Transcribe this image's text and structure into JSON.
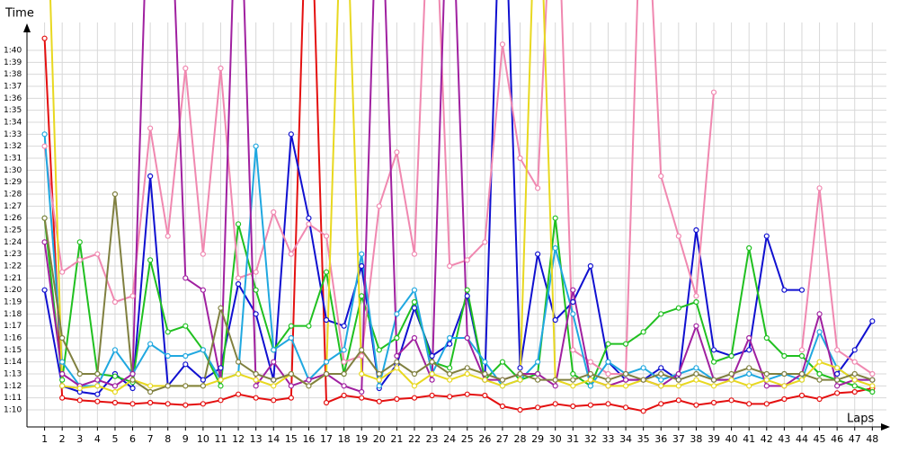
{
  "chart_data": {
    "type": "line",
    "y_label": "Time",
    "x_label": "Laps",
    "x": [
      1,
      2,
      3,
      4,
      5,
      6,
      7,
      8,
      9,
      10,
      11,
      12,
      13,
      14,
      15,
      16,
      17,
      18,
      19,
      20,
      21,
      22,
      23,
      24,
      25,
      26,
      27,
      28,
      29,
      30,
      31,
      32,
      33,
      34,
      35,
      36,
      37,
      38,
      39,
      40,
      41,
      42,
      43,
      44,
      45,
      46,
      47,
      48
    ],
    "xlim": [
      0,
      48.8
    ],
    "xticks": [
      1,
      2,
      3,
      4,
      5,
      6,
      7,
      8,
      9,
      10,
      11,
      12,
      13,
      14,
      15,
      16,
      17,
      18,
      19,
      20,
      21,
      22,
      23,
      24,
      25,
      26,
      27,
      28,
      29,
      30,
      31,
      32,
      33,
      34,
      35,
      36,
      37,
      38,
      39,
      40,
      41,
      42,
      43,
      44,
      45,
      46,
      47,
      48
    ],
    "ylim": [
      68.575,
      101.575
    ],
    "yticks": [
      {
        "value": 70,
        "label": "1:10"
      },
      {
        "value": 71,
        "label": "1:11"
      },
      {
        "value": 72,
        "label": "1:12"
      },
      {
        "value": 73,
        "label": "1:13"
      },
      {
        "value": 74,
        "label": "1:14"
      },
      {
        "value": 75,
        "label": "1:15"
      },
      {
        "value": 76,
        "label": "1:16"
      },
      {
        "value": 77,
        "label": "1:17"
      },
      {
        "value": 78,
        "label": "1:18"
      },
      {
        "value": 79,
        "label": "1:19"
      },
      {
        "value": 80,
        "label": "1:20"
      },
      {
        "value": 81,
        "label": "1:21"
      },
      {
        "value": 82,
        "label": "1:22"
      },
      {
        "value": 83,
        "label": "1:23"
      },
      {
        "value": 84,
        "label": "1:24"
      },
      {
        "value": 85,
        "label": "1:25"
      },
      {
        "value": 86,
        "label": "1:26"
      },
      {
        "value": 87,
        "label": "1:27"
      },
      {
        "value": 88,
        "label": "1:28"
      },
      {
        "value": 89,
        "label": "1:29"
      },
      {
        "value": 90,
        "label": "1:30"
      },
      {
        "value": 91,
        "label": "1:31"
      },
      {
        "value": 92,
        "label": "1:32"
      },
      {
        "value": 93,
        "label": "1:33"
      },
      {
        "value": 94,
        "label": "1:34"
      },
      {
        "value": 95,
        "label": "1:35"
      },
      {
        "value": 96,
        "label": "1:36"
      },
      {
        "value": 97,
        "label": "1:37"
      },
      {
        "value": 98,
        "label": "1:38"
      },
      {
        "value": 99,
        "label": "1:39"
      },
      {
        "value": 100,
        "label": "1:40"
      }
    ],
    "grid": true,
    "series": [
      {
        "color": "#e41010",
        "values": [
          101,
          71,
          70.8,
          70.7,
          70.6,
          70.5,
          70.6,
          70.5,
          70.4,
          70.5,
          70.8,
          71.3,
          71,
          70.8,
          71,
          120,
          70.6,
          71.2,
          71,
          70.7,
          70.9,
          71,
          71.2,
          71.1,
          71.3,
          71.2,
          70.3,
          70.0,
          70.2,
          70.5,
          70.3,
          70.4,
          70.5,
          70.2,
          69.9,
          70.5,
          70.8,
          70.4,
          70.6,
          70.8,
          70.5,
          70.5,
          70.9,
          71.2,
          70.9,
          71.4,
          71.5,
          71.8
        ]
      },
      {
        "color": "#1010d0",
        "values": [
          80,
          72,
          71.5,
          71.3,
          73,
          71.8,
          89.5,
          72,
          73.8,
          72.5,
          73.5,
          80.5,
          78,
          72.5,
          93,
          86,
          77.5,
          77,
          82,
          71.8,
          73.8,
          78.5,
          74.5,
          75.5,
          79.5,
          72.5,
          120,
          73.5,
          83,
          77.5,
          79,
          82,
          74,
          72.5,
          72.5,
          73.5,
          72.5,
          85,
          75,
          74.5,
          75,
          84.5,
          80,
          80,
          null,
          73,
          75,
          77.4
        ]
      },
      {
        "color": "#20c020",
        "values": [
          86,
          72.5,
          84,
          73,
          72.8,
          72.3,
          82.5,
          76.5,
          77,
          75,
          72,
          85.5,
          80,
          75,
          77,
          77,
          81.5,
          73,
          79.5,
          75,
          76,
          79,
          74,
          73.5,
          80,
          72.5,
          74,
          72.5,
          73,
          86,
          73,
          72,
          75.5,
          75.5,
          76.5,
          78,
          78.5,
          79,
          74,
          74.5,
          83.5,
          76,
          74.5,
          74.5,
          73,
          72.5,
          72,
          71.5
        ]
      },
      {
        "color": "#f088b0",
        "values": [
          92,
          81.5,
          82.5,
          83,
          79,
          79.5,
          93.5,
          84.5,
          98.5,
          83,
          98.5,
          81,
          81.5,
          86.5,
          83,
          85.5,
          84.5,
          74,
          74.5,
          87,
          91.5,
          83,
          120,
          82,
          82.5,
          84,
          100.5,
          91,
          88.5,
          120,
          75,
          74,
          73,
          73,
          120,
          89.5,
          84.5,
          79.5,
          96.5,
          null,
          null,
          null,
          null,
          75,
          88.5,
          75,
          74,
          73
        ]
      },
      {
        "color": "#20a8e0",
        "values": [
          93,
          74,
          72,
          72,
          75,
          73,
          75.5,
          74.5,
          74.5,
          75,
          72.5,
          73,
          92,
          75,
          76,
          72.5,
          74,
          75,
          83,
          72,
          78,
          80,
          73,
          76,
          76,
          74,
          72,
          72.5,
          74,
          83.5,
          78,
          72,
          74,
          73,
          73.5,
          72.5,
          73,
          73.5,
          72.5,
          72.5,
          73,
          72.5,
          73,
          72.5,
          76.5,
          73.5,
          72.5,
          72.5
        ]
      },
      {
        "color": "#a020a0",
        "values": [
          84,
          73,
          72,
          72.5,
          72,
          73,
          120,
          120,
          81,
          80,
          72.5,
          120,
          72,
          74,
          72,
          72.5,
          73,
          72,
          71.5,
          120,
          74.5,
          76,
          72.5,
          120,
          76,
          72.5,
          72.5,
          73,
          73,
          72,
          80,
          72.5,
          72,
          72.5,
          72.5,
          72,
          73,
          77,
          72.5,
          72.5,
          76,
          72,
          72,
          73,
          78,
          72,
          72.5,
          72.5
        ]
      },
      {
        "color": "#e8d820",
        "values": [
          120,
          72,
          71.8,
          72,
          71.5,
          72.5,
          72,
          72,
          72,
          72,
          72.5,
          73,
          72.5,
          72,
          73,
          72,
          73,
          120,
          73,
          72.5,
          73.5,
          72,
          73,
          72.5,
          73,
          72.5,
          72,
          72.5,
          120,
          72.5,
          72,
          72.5,
          72,
          72,
          72.5,
          72,
          72,
          72.5,
          72,
          72.5,
          72,
          72.5,
          72,
          72.5,
          74,
          73.5,
          72.5,
          72
        ]
      },
      {
        "color": "#808040",
        "values": [
          86,
          76,
          73,
          73,
          88,
          72.5,
          71.5,
          72,
          72,
          72,
          78.5,
          74,
          73,
          72.5,
          73,
          72,
          73,
          73,
          75,
          73,
          74,
          73,
          74,
          73,
          73.5,
          73,
          72.5,
          73,
          72.5,
          72.5,
          72.5,
          73,
          72.5,
          73,
          72.5,
          73,
          72.5,
          73,
          72.5,
          73,
          73.5,
          73,
          73,
          73,
          72.5,
          72.5,
          73,
          72.5
        ]
      }
    ]
  }
}
